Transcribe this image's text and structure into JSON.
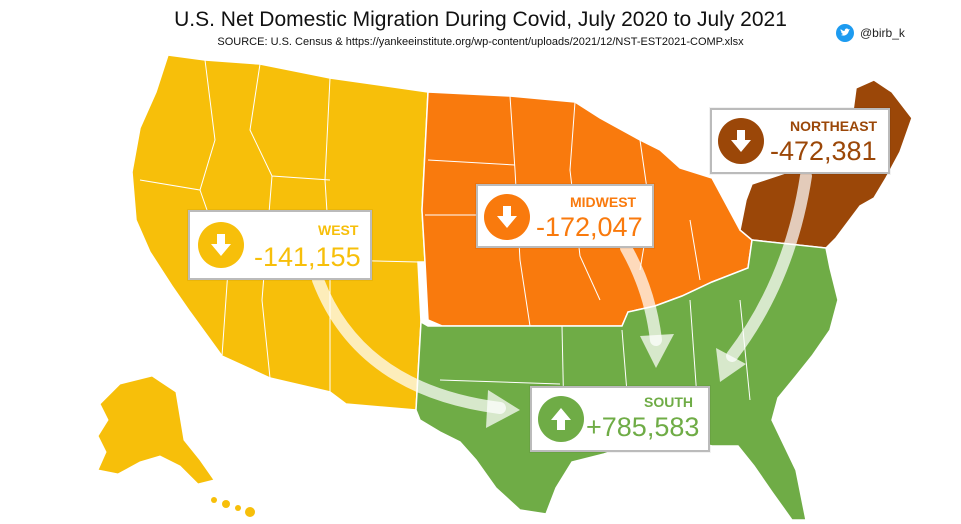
{
  "title": "U.S. Net Domestic Migration During Covid, July 2020 to July 2021",
  "source": "SOURCE: U.S. Census & https://yankeeinstitute.org/wp-content/uploads/2021/12/NST-EST2021-COMP.xlsx",
  "credit": "@birb_k",
  "icons": {
    "credit": "twitter-bird-icon",
    "down": "down-arrow-icon",
    "up": "up-arrow-icon"
  },
  "regions": {
    "west": {
      "name": "WEST",
      "value": "-141,155",
      "color": "#f7bf0a"
    },
    "midwest": {
      "name": "MIDWEST",
      "value": "-172,047",
      "color": "#f97a0d"
    },
    "northeast": {
      "name": "NORTHEAST",
      "value": "-472,381",
      "color": "#9b4708"
    },
    "south": {
      "name": "SOUTH",
      "value": "+785,583",
      "color": "#6fac46"
    }
  },
  "chart_data": {
    "type": "choropleth",
    "title": "U.S. Net Domestic Migration During Covid, July 2020 to July 2021",
    "regions": [
      {
        "name": "WEST",
        "value": -141155
      },
      {
        "name": "MIDWEST",
        "value": -172047
      },
      {
        "name": "NORTHEAST",
        "value": -472381
      },
      {
        "name": "SOUTH",
        "value": 785583
      }
    ]
  }
}
